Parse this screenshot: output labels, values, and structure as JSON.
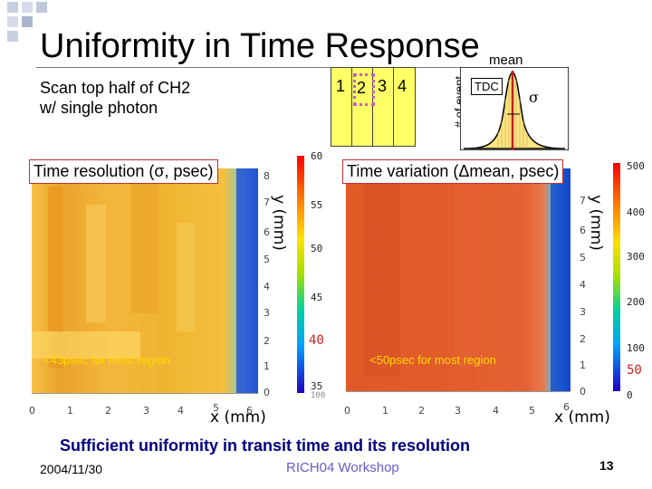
{
  "title": "Uniformity in Time Response",
  "description": "Scan top half of CH2\nw/ single photon",
  "pixel_layout": {
    "cells": [
      "1",
      "2",
      "3",
      "4"
    ]
  },
  "inset": {
    "ylabel": "# of event",
    "mean_label": "mean",
    "tdc_label": "TDC",
    "sigma_label": "σ"
  },
  "left_plot": {
    "label": "Time resolution (σ, psec)",
    "ylabel": "y (mm)",
    "xlabel": "x (mm)",
    "xticks": [
      "0",
      "1",
      "2",
      "3",
      "4",
      "5",
      "6"
    ],
    "yticks": [
      "0",
      "1",
      "2",
      "3",
      "4",
      "5",
      "6",
      "7",
      "8"
    ],
    "colorbar_ticks": [
      "60",
      "55",
      "50",
      "45",
      "40",
      "35"
    ],
    "colorbar_highlight": "40",
    "colorbar_bottom": "100",
    "annotation": "<43psec for most region"
  },
  "right_plot": {
    "label": "Time variation (Δmean, psec)",
    "ylabel": "y (mm)",
    "xlabel": "x (mm)",
    "xticks": [
      "0",
      "1",
      "2",
      "3",
      "4",
      "5",
      "6"
    ],
    "yticks": [
      "0",
      "1",
      "2",
      "3",
      "4",
      "5",
      "6",
      "7"
    ],
    "colorbar_ticks": [
      "500",
      "400",
      "300",
      "200",
      "100",
      "0"
    ],
    "colorbar_highlight": "50",
    "annotation": "<50psec for most region"
  },
  "conclusion": "Sufficient uniformity in transit time and its resolution",
  "footer": {
    "date": "2004/11/30",
    "event": "RICH04 Workshop",
    "page": "13"
  },
  "colors": {
    "left_map": "#f0b030",
    "right_map": "#e05a28",
    "edge_blue": "#2050d0",
    "highlight": "#d02020",
    "label_border": "#c03030",
    "note": "#ffdc00"
  }
}
